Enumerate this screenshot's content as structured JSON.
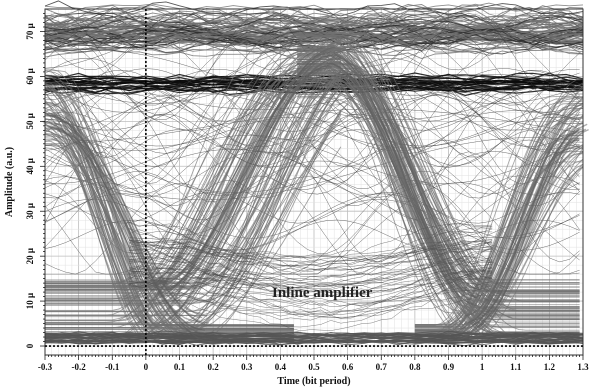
{
  "chart_data": {
    "type": "eye diagram",
    "xlabel": "Time (bit period)",
    "ylabel": "Amplitude (a.u.)",
    "xlim": [
      -0.3,
      1.3
    ],
    "ylim": [
      -2,
      75
    ],
    "x_ticks": [
      -0.3,
      -0.2,
      -0.1,
      0,
      0.1,
      0.2,
      0.3,
      0.4,
      0.5,
      0.6,
      0.7,
      0.8,
      0.9,
      1,
      1.1,
      1.2,
      1.3
    ],
    "x_tick_labels": [
      "-0.3",
      "-0.2",
      "-0.1",
      "0",
      "0.1",
      "0.2",
      "0.3",
      "0.4",
      "0.5",
      "0.6",
      "0.7",
      "0.8",
      "0.9",
      "1",
      "1.1",
      "1.2",
      "1.3"
    ],
    "y_ticks": [
      0,
      10,
      20,
      30,
      40,
      50,
      60,
      70
    ],
    "y_tick_labels": [
      "0",
      "10 μ",
      "20 μ",
      "30 μ",
      "40 μ",
      "50 μ",
      "60 μ",
      "70 μ"
    ],
    "grid": true,
    "annotation": "Inline amplifier",
    "levels": {
      "zero": 0.8,
      "one": 70,
      "dense_band": 58.5
    },
    "crossings": [
      {
        "x": 0,
        "y": 13
      },
      {
        "x": 0.55,
        "y": 67
      },
      {
        "x": 1,
        "y": 13
      }
    ],
    "trace_color": "#707070"
  }
}
